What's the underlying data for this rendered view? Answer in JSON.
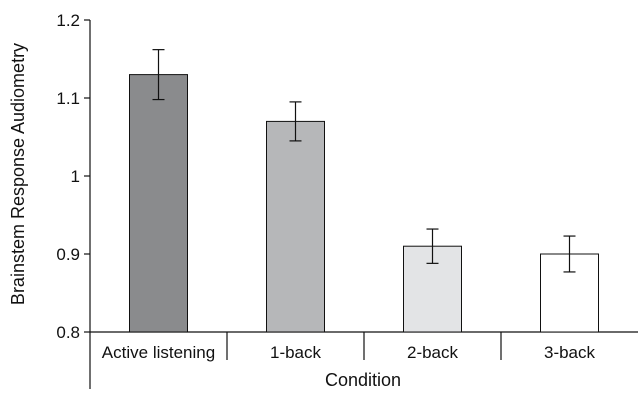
{
  "chart_data": {
    "type": "bar",
    "title": "",
    "xlabel": "Condition",
    "ylabel": "Brainstem Response Audiometry",
    "ylim": [
      0.8,
      1.2
    ],
    "yticks": [
      0.8,
      0.9,
      1,
      1.1,
      1.2
    ],
    "ytick_labels": [
      "0.8",
      "0.9",
      "1",
      "1.1",
      "1.2"
    ],
    "grid": false,
    "categories": [
      "Active listening",
      "1-back",
      "2-back",
      "3-back"
    ],
    "values": [
      1.13,
      1.07,
      0.91,
      0.9
    ],
    "error_low": [
      1.098,
      1.045,
      0.888,
      0.877
    ],
    "error_high": [
      1.162,
      1.095,
      0.932,
      0.923
    ],
    "bar_colors": [
      "#8a8b8d",
      "#b6b7b9",
      "#e3e4e6",
      "#ffffff"
    ]
  }
}
